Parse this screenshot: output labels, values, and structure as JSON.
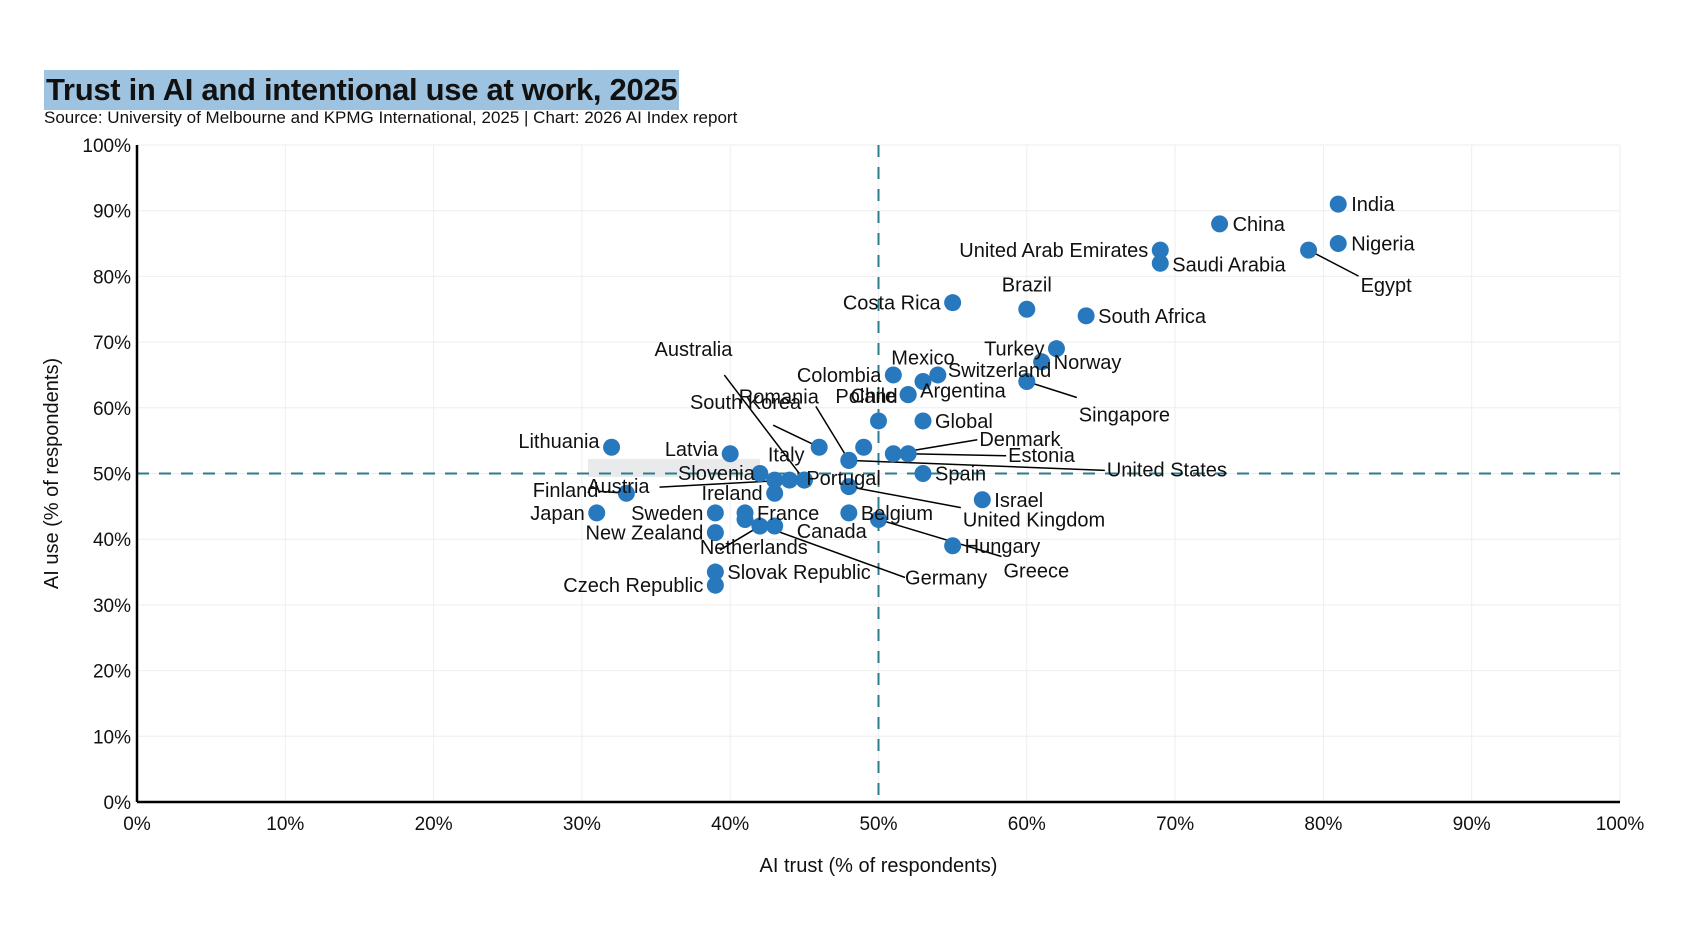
{
  "chart_data": {
    "type": "scatter",
    "title": "Trust in AI and intentional use at work, 2025",
    "subtitle": "Source: University of Melbourne and KPMG International, 2025 | Chart: 2026 AI Index report",
    "xlabel": "AI trust (% of respondents)",
    "ylabel": "AI use (% of respondents)",
    "xlim": [
      0,
      100
    ],
    "ylim": [
      0,
      100
    ],
    "xticks": [
      "0%",
      "10%",
      "20%",
      "30%",
      "40%",
      "50%",
      "60%",
      "70%",
      "80%",
      "90%",
      "100%"
    ],
    "yticks": [
      "0%",
      "10%",
      "20%",
      "30%",
      "40%",
      "50%",
      "60%",
      "70%",
      "80%",
      "90%",
      "100%"
    ],
    "reference_lines": {
      "x": 50,
      "y": 50
    },
    "grid": true,
    "colors": {
      "point": "#2878be",
      "reference": "#2e7d8c",
      "title_highlight": "#9ec3e0"
    },
    "points": [
      {
        "label": "India",
        "x": 81,
        "y": 91
      },
      {
        "label": "China",
        "x": 73,
        "y": 88
      },
      {
        "label": "Nigeria",
        "x": 81,
        "y": 85
      },
      {
        "label": "Egypt",
        "x": 79,
        "y": 84
      },
      {
        "label": "United Arab Emirates",
        "x": 69,
        "y": 84
      },
      {
        "label": "Saudi Arabia",
        "x": 69,
        "y": 82
      },
      {
        "label": "Costa Rica",
        "x": 55,
        "y": 76
      },
      {
        "label": "Brazil",
        "x": 60,
        "y": 75
      },
      {
        "label": "South Africa",
        "x": 64,
        "y": 74
      },
      {
        "label": "Turkey",
        "x": 62,
        "y": 69
      },
      {
        "label": "Norway",
        "x": 61,
        "y": 67
      },
      {
        "label": "Colombia",
        "x": 51,
        "y": 65
      },
      {
        "label": "Switzerland",
        "x": 54,
        "y": 65
      },
      {
        "label": "Mexico",
        "x": 53,
        "y": 64
      },
      {
        "label": "Singapore",
        "x": 60,
        "y": 64
      },
      {
        "label": "Chile",
        "x": 52,
        "y": 62
      },
      {
        "label": "Argentina",
        "x": 52,
        "y": 62
      },
      {
        "label": "Global",
        "x": 53,
        "y": 58
      },
      {
        "label": "Poland",
        "x": 50,
        "y": 58
      },
      {
        "label": "Lithuania",
        "x": 32,
        "y": 54
      },
      {
        "label": "South Korea",
        "x": 46,
        "y": 54
      },
      {
        "label": "",
        "x": 49,
        "y": 54
      },
      {
        "label": "Latvia",
        "x": 40,
        "y": 53
      },
      {
        "label": "Denmark",
        "x": 51,
        "y": 53
      },
      {
        "label": "Estonia",
        "x": 52,
        "y": 53
      },
      {
        "label": "Romania",
        "x": 48,
        "y": 52
      },
      {
        "label": "United States",
        "x": 48,
        "y": 52
      },
      {
        "label": "Italy",
        "x": 42,
        "y": 50
      },
      {
        "label": "Spain",
        "x": 53,
        "y": 50
      },
      {
        "label": "Slovenia",
        "x": 43,
        "y": 49
      },
      {
        "label": "Austria",
        "x": 44,
        "y": 49
      },
      {
        "label": "Australia",
        "x": 45,
        "y": 49
      },
      {
        "label": "Portugal",
        "x": 45,
        "y": 49
      },
      {
        "label": "United Kingdom",
        "x": 48,
        "y": 48
      },
      {
        "label": "Finland",
        "x": 33,
        "y": 47
      },
      {
        "label": "Ireland",
        "x": 43,
        "y": 47
      },
      {
        "label": "Israel",
        "x": 57,
        "y": 46
      },
      {
        "label": "Japan",
        "x": 31,
        "y": 44
      },
      {
        "label": "Sweden",
        "x": 39,
        "y": 44
      },
      {
        "label": "France",
        "x": 41,
        "y": 44
      },
      {
        "label": "Belgium",
        "x": 48,
        "y": 44
      },
      {
        "label": "Germany",
        "x": 41,
        "y": 43
      },
      {
        "label": "Greece",
        "x": 50,
        "y": 43
      },
      {
        "label": "Netherlands",
        "x": 42,
        "y": 42
      },
      {
        "label": "Canada",
        "x": 43,
        "y": 42
      },
      {
        "label": "New Zealand",
        "x": 39,
        "y": 41
      },
      {
        "label": "Hungary",
        "x": 55,
        "y": 39
      },
      {
        "label": "Slovak Republic",
        "x": 39,
        "y": 35
      },
      {
        "label": "Czech Republic",
        "x": 39,
        "y": 33
      }
    ]
  }
}
